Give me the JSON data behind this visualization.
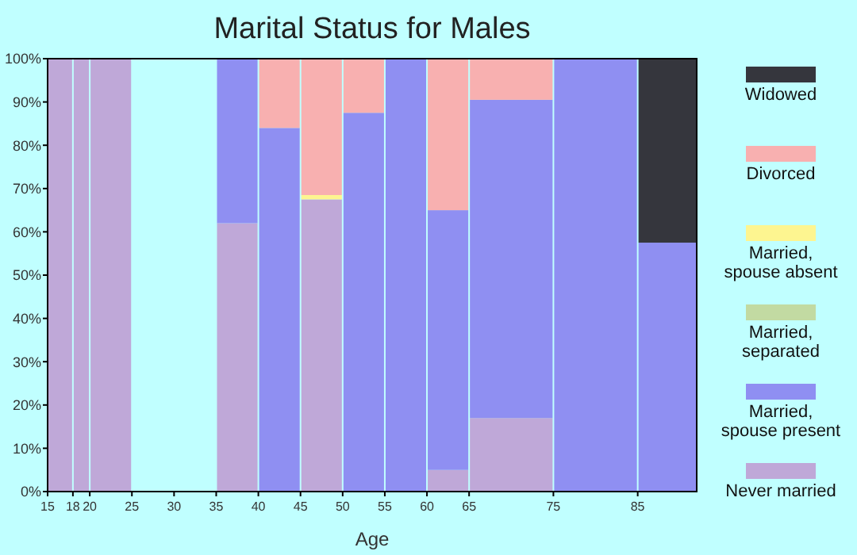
{
  "chart_data": {
    "type": "bar",
    "stacked": true,
    "title": "Marital Status for Males",
    "xlabel": "Age",
    "x": [
      16.5,
      19,
      22.5,
      30,
      37.5,
      42.5,
      47.5,
      52.5,
      57.5,
      62.5,
      70,
      80,
      88.5
    ],
    "series": [
      {
        "name": "Never married",
        "color": "#bfa8d8",
        "values": [
          100,
          100,
          100,
          null,
          62,
          0,
          67.5,
          0,
          0,
          5,
          17,
          0,
          0
        ]
      },
      {
        "name": "Married, spouse present",
        "color": "#8f8ff2",
        "values": [
          0,
          0,
          0,
          null,
          38,
          84,
          0,
          87.5,
          100,
          60,
          73.5,
          100,
          57.5
        ]
      },
      {
        "name": "Married, separated",
        "color": "#c2daa2",
        "values": [
          0,
          0,
          0,
          null,
          0,
          0,
          0,
          0,
          0,
          0,
          0,
          0,
          0
        ]
      },
      {
        "name": "Married, spouse absent",
        "color": "#fdf590",
        "values": [
          0,
          0,
          0,
          null,
          0,
          0,
          1,
          0,
          0,
          0,
          0,
          0,
          0
        ]
      },
      {
        "name": "Divorced",
        "color": "#f8b0b0",
        "values": [
          0,
          0,
          0,
          null,
          0,
          16,
          31.5,
          12.5,
          0,
          35,
          9.5,
          0,
          0
        ]
      },
      {
        "name": "Widowed",
        "color": "#35363d",
        "values": [
          0,
          0,
          0,
          null,
          0,
          0,
          0,
          0,
          0,
          0,
          0,
          0,
          42.5
        ]
      }
    ],
    "xlim": [
      15,
      92
    ],
    "xticks": [
      15,
      18,
      20,
      25,
      30,
      35,
      40,
      45,
      50,
      55,
      60,
      65,
      75,
      85
    ],
    "ylim": [
      0,
      100
    ],
    "yticks": [
      {
        "value": 0,
        "label": "0%"
      },
      {
        "value": 10,
        "label": "10%"
      },
      {
        "value": 20,
        "label": "20%"
      },
      {
        "value": 30,
        "label": "30%"
      },
      {
        "value": 40,
        "label": "40%"
      },
      {
        "value": 50,
        "label": "50%"
      },
      {
        "value": 60,
        "label": "60%"
      },
      {
        "value": 70,
        "label": "70%"
      },
      {
        "value": 80,
        "label": "80%"
      },
      {
        "value": 90,
        "label": "90%"
      },
      {
        "value": 100,
        "label": "100%"
      }
    ],
    "grid": false,
    "legend": "right"
  }
}
